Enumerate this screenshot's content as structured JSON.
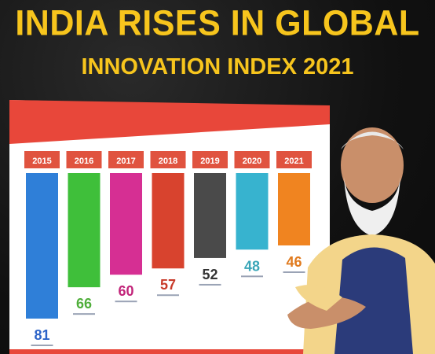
{
  "header": {
    "title_line1": "INDIA RISES IN GLOBAL",
    "title_line2": "INNOVATION INDEX 2021"
  },
  "colors": {
    "title": "#f7c51d",
    "banner_red": "#e8473a",
    "panel": "#ffffff",
    "value_text": "#2a3a5a"
  },
  "chart_data": {
    "type": "bar",
    "categories": [
      "2015",
      "2016",
      "2017",
      "2018",
      "2019",
      "2020",
      "2021"
    ],
    "values": [
      81,
      66,
      60,
      57,
      52,
      48,
      46
    ],
    "value_label_colors": [
      "#2d64c8",
      "#4fae3a",
      "#c2257a",
      "#c83a2a",
      "#333333",
      "#3aa6b8",
      "#e07a1e"
    ],
    "bar_colors": [
      "#2f7fd8",
      "#3fbf3a",
      "#d62f93",
      "#d8432e",
      "#4a4a4a",
      "#37b3cf",
      "#f08420"
    ],
    "title": "",
    "xlabel": "",
    "ylabel": "",
    "ylim": [
      0,
      90
    ],
    "grid": false,
    "legend": "none"
  }
}
